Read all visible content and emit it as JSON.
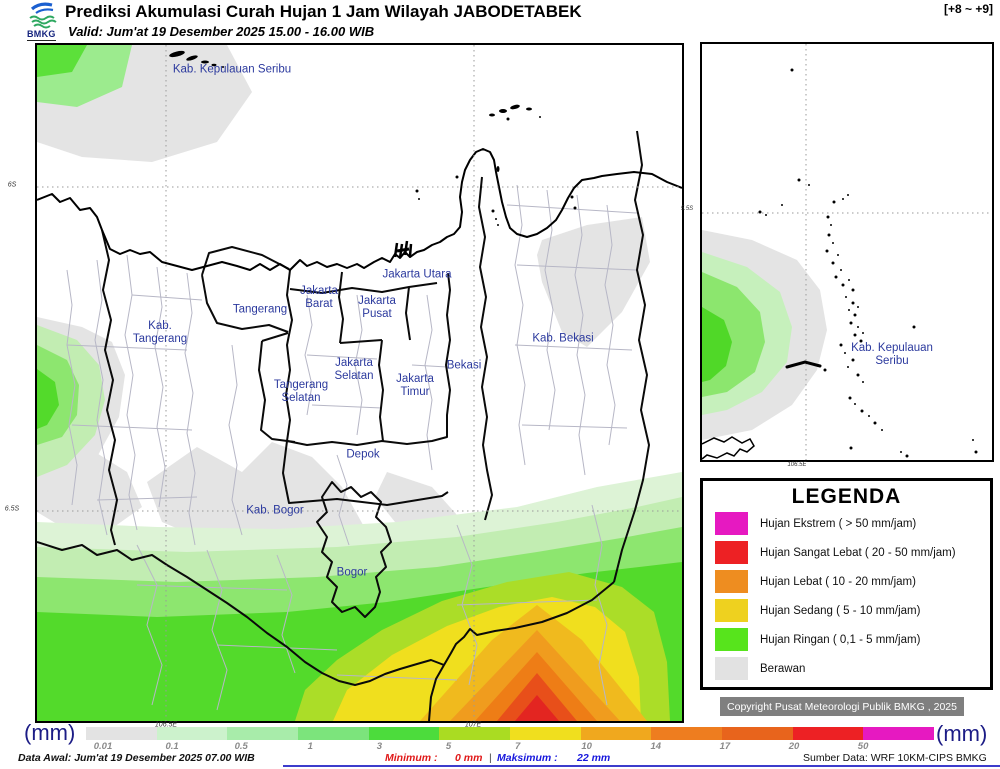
{
  "header": {
    "logo_text": "BMKG",
    "title": "Prediksi Akumulasi Curah Hujan 1 Jam Wilayah JABODETABEK",
    "valid": "Valid: Jum'at 19 Desember 2025 15.00 - 16.00 WIB",
    "time_offset": "[+8 ~ +9]"
  },
  "main_map": {
    "labels": [
      {
        "text": "Kab. Kepulauan Seribu"
      },
      {
        "text": "Jakarta Utara"
      },
      {
        "text": "Jakarta\nBarat"
      },
      {
        "text": "Jakarta\nPusat"
      },
      {
        "text": "Tangerang"
      },
      {
        "text": "Kab.\nTangerang"
      },
      {
        "text": "Jakarta\nSelatan"
      },
      {
        "text": "Jakarta\nTimur"
      },
      {
        "text": "Bekasi"
      },
      {
        "text": "Kab. Bekasi"
      },
      {
        "text": "Tangerang\nSelatan"
      },
      {
        "text": "Depok"
      },
      {
        "text": "Kab. Bogor"
      },
      {
        "text": "Bogor"
      }
    ],
    "axis": {
      "lat_top": "6S",
      "lat_bottom": "6.5S",
      "lon_left": "106.5E",
      "lon_right": "107E"
    }
  },
  "inset_map": {
    "label": "Kab. Kepulauan Seribu",
    "axis": {
      "lat": "5.5S",
      "lon": "106.5E"
    }
  },
  "legend": {
    "title": "LEGENDA",
    "items": [
      {
        "label": "Hujan Ekstrem ( > 50 mm/jam)",
        "color": "#e619c1"
      },
      {
        "label": "Hujan Sangat Lebat ( 20 - 50 mm/jam)",
        "color": "#ed2124"
      },
      {
        "label": "Hujan Lebat ( 10 - 20 mm/jam)",
        "color": "#ee8d20"
      },
      {
        "label": "Hujan Sedang ( 5 - 10 mm/jam)",
        "color": "#eed11f"
      },
      {
        "label": "Hujan Ringan ( 0,1 - 5 mm/jam)",
        "color": "#57e41c"
      },
      {
        "label": "Berawan",
        "color": "#e2e2e2"
      }
    ]
  },
  "copyright": "Copyright Pusat Meteorologi Publik BMKG , 2025",
  "colorbar": {
    "unit": "(mm)",
    "ticks": [
      "0.01",
      "0.1",
      "0.5",
      "1",
      "3",
      "5",
      "7",
      "10",
      "14",
      "17",
      "20",
      "50"
    ],
    "colors": [
      "#e3e3e3",
      "#ccf2cc",
      "#a8ecaa",
      "#7ce47c",
      "#4cdc3c",
      "#aadc22",
      "#f0df1e",
      "#f0a81e",
      "#ee7d1f",
      "#e8641c",
      "#ed2124",
      "#e619c1"
    ]
  },
  "footer": {
    "data_awal": "Data Awal: Jum'at 19 Desember 2025 07.00 WIB",
    "minimum_label": "Minimum :",
    "minimum_value": "0 mm",
    "separator": "|",
    "maksimum_label": "Maksimum :",
    "maksimum_value": "22 mm",
    "sumber": "Sumber Data: WRF 10KM-CIPS BMKG"
  }
}
